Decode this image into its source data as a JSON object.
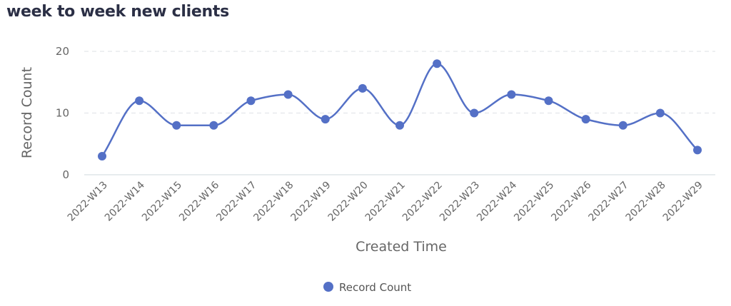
{
  "title": "week to week new clients",
  "chart_data": {
    "type": "line",
    "title": "week to week new clients",
    "xlabel": "Created Time",
    "ylabel": "Record Count",
    "categories": [
      "2022-W13",
      "2022-W14",
      "2022-W15",
      "2022-W16",
      "2022-W17",
      "2022-W18",
      "2022-W19",
      "2022-W20",
      "2022-W21",
      "2022-W22",
      "2022-W23",
      "2022-W24",
      "2022-W25",
      "2022-W26",
      "2022-W27",
      "2022-W28",
      "2022-W29"
    ],
    "series": [
      {
        "name": "Record Count",
        "values": [
          3,
          12,
          8,
          8,
          12,
          13,
          9,
          14,
          8,
          18,
          10,
          13,
          12,
          9,
          8,
          10,
          4
        ],
        "color": "#5470c6"
      }
    ],
    "ylim": [
      0,
      20
    ],
    "yticks": [
      0,
      10,
      20
    ],
    "smooth": true,
    "grid": "horizontal dashed",
    "legend": "bottom-center"
  }
}
